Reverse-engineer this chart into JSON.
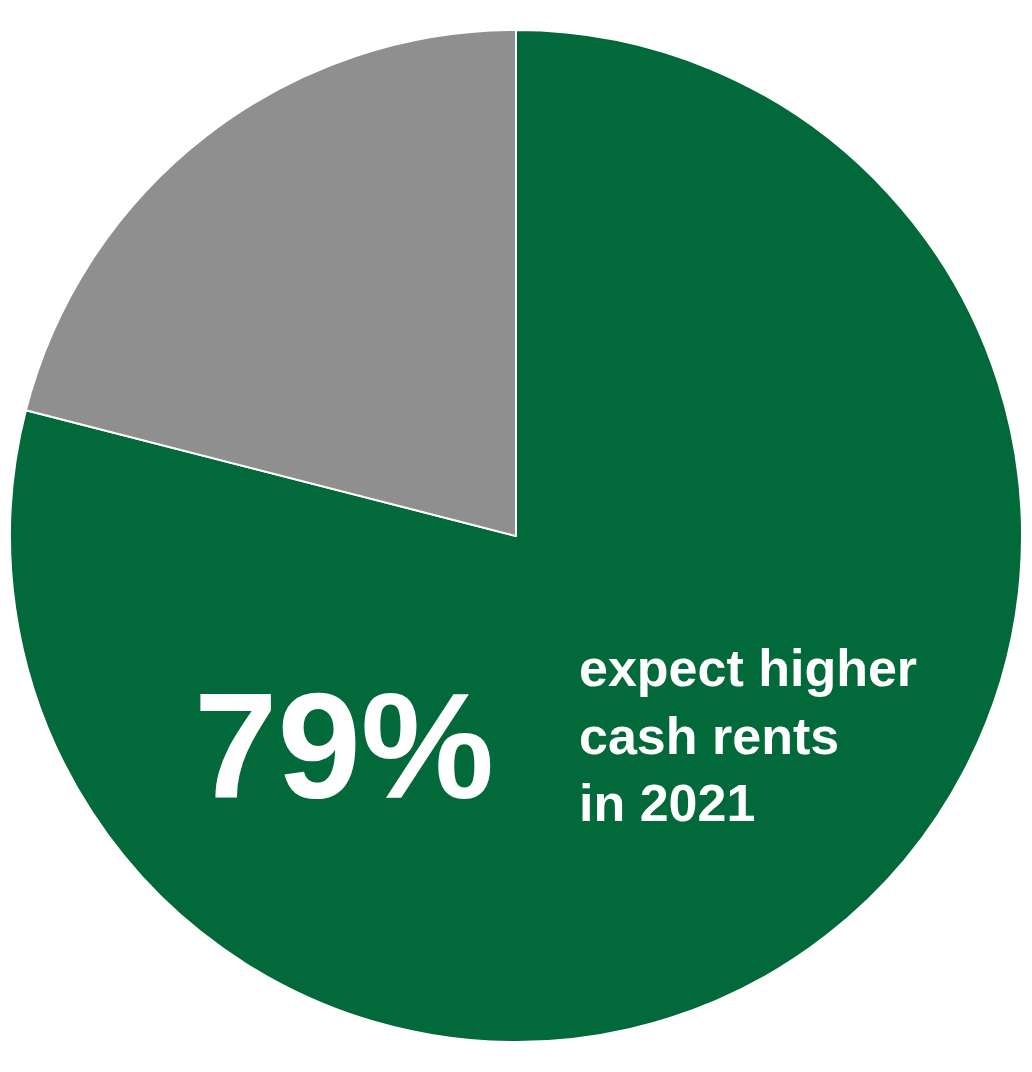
{
  "chart_data": {
    "type": "pie",
    "categories": [
      "expect higher\ncash rents\nin 2021",
      null
    ],
    "values": [
      79,
      21
    ],
    "colors": [
      "#02693a",
      "#8f8f8f"
    ],
    "value_labels": [
      "79%",
      null
    ]
  }
}
